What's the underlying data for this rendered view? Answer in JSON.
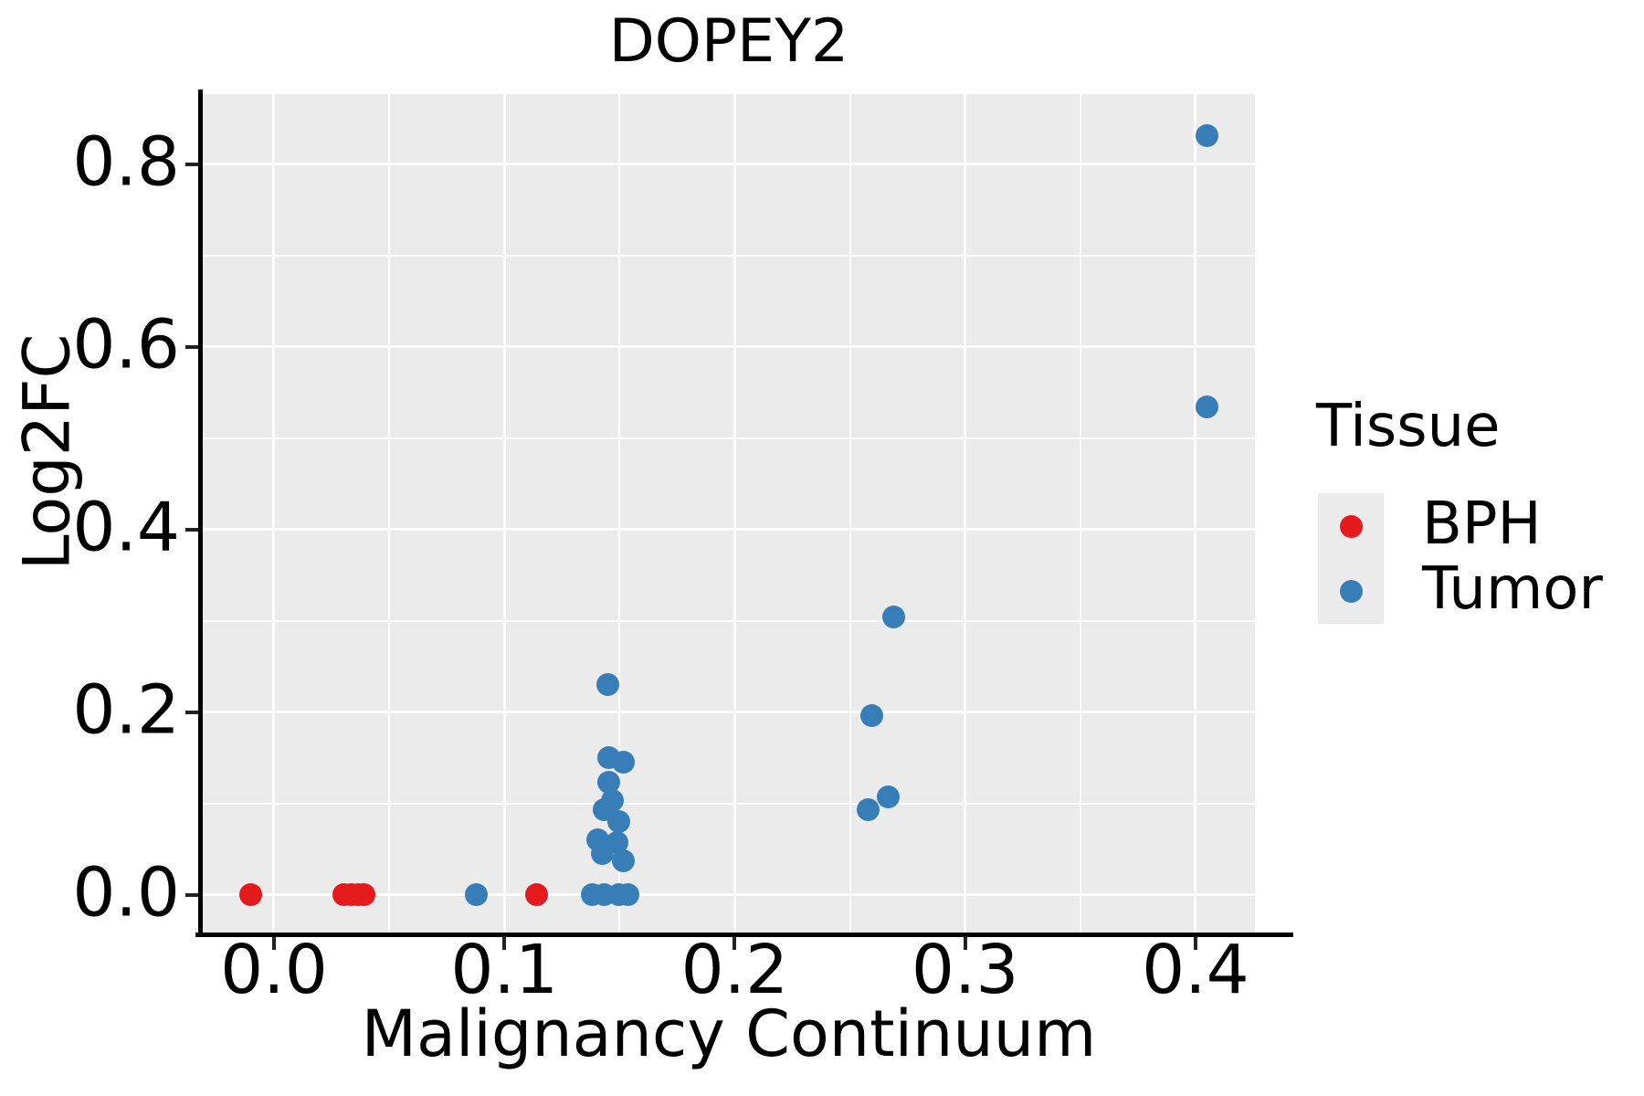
{
  "colors": {
    "bph_red": "#e41a1c",
    "tumor_blue": "#377eb8",
    "panel_background": "#ebebeb",
    "gridline": "#ffffff",
    "text": "#000000"
  },
  "legend": {
    "title": "Tissue",
    "entries": [
      {
        "label": "BPH",
        "color": "#e41a1c"
      },
      {
        "label": "Tumor",
        "color": "#377eb8"
      }
    ]
  },
  "chart_data": {
    "type": "scatter",
    "title": "DOPEY2",
    "xlabel": "Malignancy Continuum",
    "ylabel": "Log2FC",
    "xlim": [
      -0.0309,
      0.4258
    ],
    "ylim": [
      -0.0415,
      0.8765
    ],
    "x_ticks": [
      0.0,
      0.1,
      0.2,
      0.3,
      0.4
    ],
    "y_ticks": [
      0.0,
      0.2,
      0.4,
      0.6,
      0.8
    ],
    "x_minor_ticks": [
      0.05,
      0.15,
      0.25,
      0.35
    ],
    "y_minor_ticks": [
      0.1,
      0.3,
      0.5,
      0.7
    ],
    "grid": true,
    "legend_position": "right",
    "series": [
      {
        "name": "BPH",
        "color": "#e41a1c",
        "points": [
          [
            -0.01,
            0.0
          ],
          [
            0.0305,
            0.0
          ],
          [
            0.0335,
            0.0
          ],
          [
            0.0365,
            0.0
          ],
          [
            0.039,
            0.0
          ],
          [
            0.114,
            0.0
          ]
        ]
      },
      {
        "name": "Tumor",
        "color": "#377eb8",
        "points": [
          [
            0.088,
            0.0
          ],
          [
            0.138,
            0.0
          ],
          [
            0.1435,
            0.0
          ],
          [
            0.1495,
            0.0
          ],
          [
            0.1535,
            0.0
          ],
          [
            0.1515,
            0.037
          ],
          [
            0.1425,
            0.045
          ],
          [
            0.149,
            0.057
          ],
          [
            0.1405,
            0.06
          ],
          [
            0.1495,
            0.08
          ],
          [
            0.1435,
            0.093
          ],
          [
            0.147,
            0.103
          ],
          [
            0.1455,
            0.123
          ],
          [
            0.1515,
            0.145
          ],
          [
            0.1455,
            0.15
          ],
          [
            0.145,
            0.23
          ],
          [
            0.258,
            0.093
          ],
          [
            0.2665,
            0.107
          ],
          [
            0.2595,
            0.196
          ],
          [
            0.269,
            0.304
          ],
          [
            0.405,
            0.534
          ],
          [
            0.405,
            0.831
          ]
        ]
      }
    ]
  }
}
